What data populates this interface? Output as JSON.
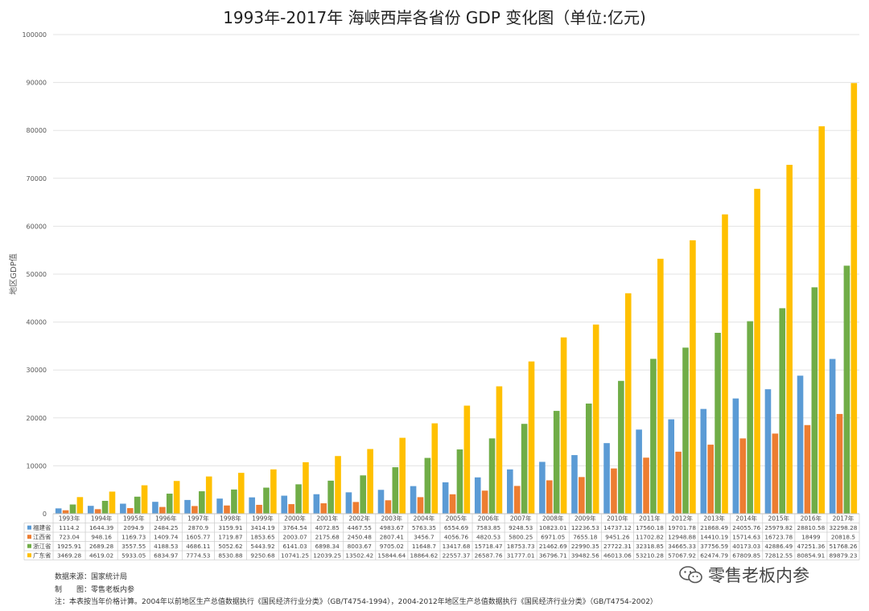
{
  "chart_data": {
    "type": "bar",
    "title": "1993年-2017年 海峡西岸各省份 GDP 变化图（单位:亿元)",
    "ylabel": "地区GDP值",
    "xlabel": "",
    "ylim": [
      0,
      100000
    ],
    "yticks": [
      0,
      10000,
      20000,
      30000,
      40000,
      50000,
      60000,
      70000,
      80000,
      90000,
      100000
    ],
    "grid": true,
    "legend": "data-table",
    "categories": [
      "1993年",
      "1994年",
      "1995年",
      "1996年",
      "1997年",
      "1998年",
      "1999年",
      "2000年",
      "2001年",
      "2002年",
      "2003年",
      "2004年",
      "2005年",
      "2006年",
      "2007年",
      "2008年",
      "2009年",
      "2010年",
      "2011年",
      "2012年",
      "2013年",
      "2014年",
      "2015年",
      "2016年",
      "2017年"
    ],
    "series": [
      {
        "name": "福建省",
        "color": "#5b9bd5",
        "values": [
          1114.2,
          1644.39,
          2094.9,
          2484.25,
          2870.9,
          3159.91,
          3414.19,
          3764.54,
          4072.85,
          4467.55,
          4983.67,
          5763.35,
          6554.69,
          7583.85,
          9248.53,
          10823.01,
          12236.53,
          14737.12,
          17560.18,
          19701.78,
          21868.49,
          24055.76,
          25979.82,
          28810.58,
          32298.28
        ]
      },
      {
        "name": "江西省",
        "color": "#ed7d31",
        "values": [
          723.04,
          948.16,
          1169.73,
          1409.74,
          1605.77,
          1719.87,
          1853.65,
          2003.07,
          2175.68,
          2450.48,
          2807.41,
          3456.7,
          4056.76,
          4820.53,
          5800.25,
          6971.05,
          7655.18,
          9451.26,
          11702.82,
          12948.88,
          14410.19,
          15714.63,
          16723.78,
          18499,
          20818.5
        ]
      },
      {
        "name": "浙江省",
        "color": "#70ad47",
        "values": [
          1925.91,
          2689.28,
          3557.55,
          4188.53,
          4686.11,
          5052.62,
          5443.92,
          6141.03,
          6898.34,
          8003.67,
          9705.02,
          11648.7,
          13417.68,
          15718.47,
          18753.73,
          21462.69,
          22990.35,
          27722.31,
          32318.85,
          34665.33,
          37756.59,
          40173.03,
          42886.49,
          47251.36,
          51768.26
        ]
      },
      {
        "name": "广东省",
        "color": "#ffc000",
        "values": [
          3469.28,
          4619.02,
          5933.05,
          6834.97,
          7774.53,
          8530.88,
          9250.68,
          10741.25,
          12039.25,
          13502.42,
          15844.64,
          18864.62,
          22557.37,
          26587.76,
          31777.01,
          36796.71,
          39482.56,
          46013.06,
          53210.28,
          57067.92,
          62474.79,
          67809.85,
          72812.55,
          80854.91,
          89879.23
        ]
      }
    ]
  },
  "notes": {
    "source": "数据来源：国家统计局",
    "maker": "制　　图：零售老板内参",
    "footnote": "注：本表按当年价格计算。2004年以前地区生产总值数据执行《国民经济行业分类》（GB/T4754-1994），2004-2012年地区生产总值数据执行《国民经济行业分类》（GB/T4754-2002）"
  },
  "watermark": {
    "text": "零售老板内参",
    "icon": "wechat-icon"
  }
}
